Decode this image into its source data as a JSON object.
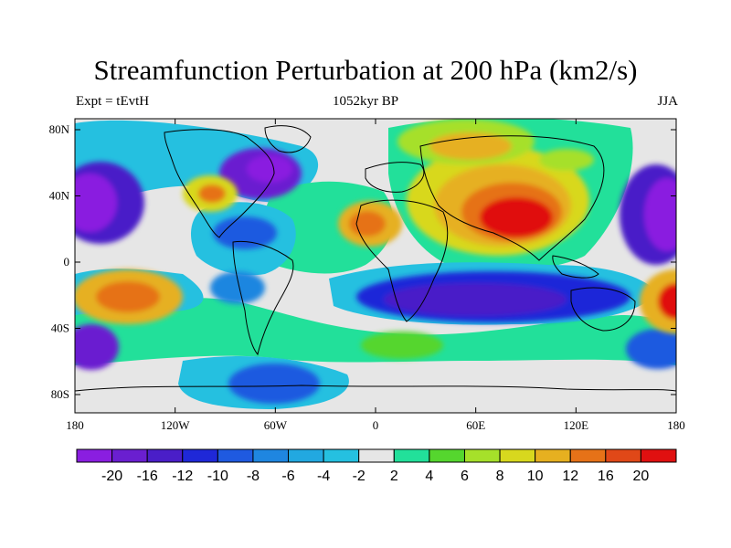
{
  "title": "Streamfunction Perturbation at 200 hPa (km2/s)",
  "subtitle_left": "Expt = tEvtH",
  "subtitle_center": "1052kyr BP",
  "subtitle_right": "JJA",
  "y_axis": {
    "labels": [
      "80N",
      "40N",
      "0",
      "40S",
      "80S"
    ]
  },
  "x_axis": {
    "labels": [
      "180",
      "120W",
      "60W",
      "0",
      "60E",
      "120E",
      "180"
    ]
  },
  "colorbar": {
    "labels": [
      "-20",
      "-16",
      "-12",
      "-10",
      "-8",
      "-6",
      "-4",
      "-2",
      "2",
      "4",
      "6",
      "8",
      "10",
      "12",
      "16",
      "20"
    ],
    "colors": [
      "#8a1ee0",
      "#6a1fd0",
      "#4a1ec8",
      "#1f28d8",
      "#1f5ae0",
      "#1f86e0",
      "#22a8e0",
      "#25c0e0",
      "#e6e6e6",
      "#22e09a",
      "#55d62e",
      "#a6e02a",
      "#d8d81e",
      "#e6b020",
      "#e67218",
      "#e04818",
      "#e01010"
    ]
  },
  "fill_color": "#e6e6e6"
}
